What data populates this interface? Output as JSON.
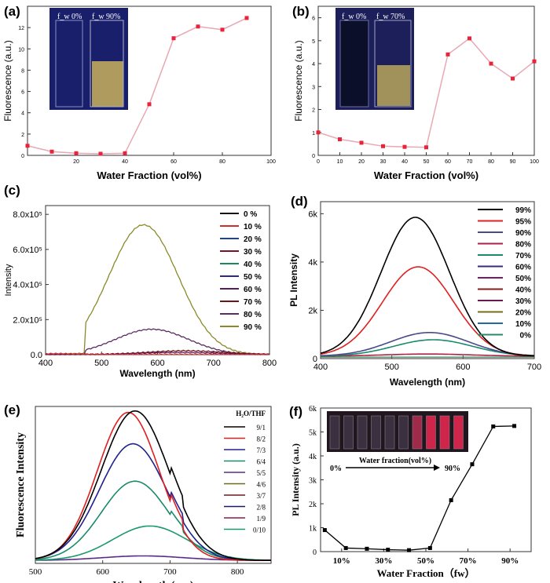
{
  "colors": {
    "panel_a_line": "#e8a8b4",
    "panel_a_marker": "#e8233a",
    "panel_b_line": "#e8a8b4",
    "panel_b_marker": "#e8233a",
    "panel_c": {
      "0 %": "#111111",
      "10 %": "#d42b2b",
      "20 %": "#1c3fa8",
      "30 %": "#7a0f2a",
      "40 %": "#1b8a5a",
      "50 %": "#2e2a8c",
      "60 %": "#5a1c5a",
      "70 %": "#6b1616",
      "80 %": "#5b2c60",
      "90 %": "#8a8a2a"
    },
    "panel_d": {
      "99%": "#000000",
      "95%": "#e02020",
      "90%": "#4a4a8a",
      "80%": "#b0204a",
      "70%": "#1a8a6a",
      "60%": "#3a2a7a",
      "50%": "#7a1a6a",
      "40%": "#8a1a1a",
      "30%": "#6a1a4a",
      "20%": "#7a6a1a",
      "10%": "#1a6aaa",
      "0%": "#2a8a6a"
    },
    "panel_e": {
      "9/1": "#000000",
      "8/2": "#e02020",
      "7/3": "#202090",
      "6/4": "#1a8a6a",
      "5/5": "#5a2a8a",
      "4/6": "#6a6a1a",
      "3/7": "#6a1a1a",
      "2/8": "#1a1a6a",
      "1/9": "#8a1a4a",
      "0/10": "#1a9a6a"
    },
    "panel_f": "#000000"
  },
  "chart_data": [
    {
      "panel": "(a)",
      "type": "line",
      "title": "",
      "xlabel": "Water Fraction (vol%)",
      "ylabel": "Fluorescence (a.u.)",
      "xlim": [
        0,
        100
      ],
      "ylim": [
        0,
        14
      ],
      "xticks": [
        "20",
        "40",
        "60",
        "80",
        "100"
      ],
      "yticks": [
        "0",
        "2",
        "4",
        "6",
        "8",
        "10",
        "12"
      ],
      "x": [
        0,
        10,
        20,
        30,
        40,
        50,
        60,
        70,
        80,
        90
      ],
      "y": [
        0.9,
        0.35,
        0.2,
        0.15,
        0.2,
        4.8,
        11.0,
        12.1,
        11.8,
        12.9
      ],
      "inset_labels": [
        "f_w 0%",
        "f_w 90%"
      ]
    },
    {
      "panel": "(b)",
      "type": "line",
      "title": "",
      "xlabel": "Water Fraction (vol%)",
      "ylabel": "Fluorescence (a.u.)",
      "xlim": [
        0,
        100
      ],
      "ylim": [
        0,
        6.5
      ],
      "xticks": [
        "0",
        "10",
        "20",
        "30",
        "40",
        "50",
        "60",
        "70",
        "80",
        "90",
        "100"
      ],
      "yticks": [
        "0",
        "1",
        "2",
        "3",
        "4",
        "5",
        "6"
      ],
      "x": [
        0,
        10,
        20,
        30,
        40,
        50,
        60,
        70,
        80,
        90,
        100
      ],
      "y": [
        1.0,
        0.7,
        0.55,
        0.4,
        0.37,
        0.35,
        4.4,
        5.1,
        4.0,
        3.35,
        4.1
      ],
      "inset_labels": [
        "f_w 0%",
        "f_w 70%"
      ]
    },
    {
      "panel": "(c)",
      "type": "line",
      "xlabel": "Wavelength (nm)",
      "ylabel": "Intensity",
      "xlim": [
        400,
        800
      ],
      "ylim": [
        0,
        850000
      ],
      "xticks": [
        "400",
        "500",
        "600",
        "700",
        "800"
      ],
      "yticks": [
        "0.0",
        "2.0x10⁵",
        "4.0x10⁵",
        "6.0x10⁵",
        "8.0x10⁵"
      ],
      "legend": [
        "0 %",
        "10 %",
        "20 %",
        "30 %",
        "40 %",
        "50 %",
        "60 %",
        "70 %",
        "80 %",
        "90 %"
      ],
      "series": [
        {
          "name": "90 %",
          "peak": 575,
          "height": 740000,
          "width": 62
        },
        {
          "name": "80 %",
          "peak": 590,
          "height": 145000,
          "width": 65
        },
        {
          "name": "70 %",
          "peak": 650,
          "height": 22000,
          "width": 70
        },
        {
          "name": "60 %",
          "peak": 640,
          "height": 12000,
          "width": 80
        },
        {
          "name": "10 %",
          "peak": 420,
          "height": 6000,
          "width": 40
        }
      ]
    },
    {
      "panel": "(d)",
      "type": "line",
      "xlabel": "Wavelength (nm)",
      "ylabel": "PL Intensity",
      "xlim": [
        400,
        700
      ],
      "ylim": [
        0,
        6500
      ],
      "xticks": [
        "400",
        "500",
        "600",
        "700"
      ],
      "yticks": [
        "0",
        "2k",
        "4k",
        "6k"
      ],
      "legend": [
        "99%",
        "95%",
        "90%",
        "80%",
        "70%",
        "60%",
        "50%",
        "40%",
        "30%",
        "20%",
        "10%",
        "0%"
      ],
      "series": [
        {
          "name": "99%",
          "peak": 533,
          "height": 5750,
          "width": 48
        },
        {
          "name": "95%",
          "peak": 537,
          "height": 3700,
          "width": 50
        },
        {
          "name": "90%",
          "peak": 553,
          "height": 980,
          "width": 55
        },
        {
          "name": "70%",
          "peak": 558,
          "height": 680,
          "width": 55
        },
        {
          "name": "80%",
          "peak": 550,
          "height": 90,
          "width": 60
        }
      ]
    },
    {
      "panel": "(e)",
      "type": "line",
      "xlabel": "Wavelength (nm)",
      "ylabel": "Fluorescence Intensity",
      "xlim": [
        500,
        850
      ],
      "ylim": [
        0,
        1.05
      ],
      "xticks": [
        "500",
        "600",
        "700",
        "800"
      ],
      "legend_title": "H₂O/THF",
      "legend": [
        "9/1",
        "8/2",
        "7/3",
        "6/4",
        "5/5",
        "4/6",
        "3/7",
        "2/8",
        "1/9",
        "0/10"
      ],
      "series": [
        {
          "name": "9/1",
          "peak": 648,
          "height": 1.0,
          "width": 50
        },
        {
          "name": "8/2",
          "peak": 638,
          "height": 0.99,
          "width": 46
        },
        {
          "name": "7/3",
          "peak": 645,
          "height": 0.78,
          "width": 50
        },
        {
          "name": "6/4",
          "peak": 648,
          "height": 0.53,
          "width": 50
        },
        {
          "name": "0/10",
          "peak": 670,
          "height": 0.23,
          "width": 55
        },
        {
          "name": "5/5",
          "peak": 660,
          "height": 0.03,
          "width": 60
        }
      ]
    },
    {
      "panel": "(f)",
      "type": "line",
      "xlabel": "Water Fraction（fw）",
      "ylabel": "PL Intensity (a.u.)",
      "xlim": [
        0,
        100
      ],
      "ylim": [
        0,
        6000
      ],
      "xticks": [
        "10%",
        "30%",
        "50%",
        "70%",
        "90%"
      ],
      "yticks": [
        "0",
        "1k",
        "2k",
        "3k",
        "4k",
        "5k",
        "6k"
      ],
      "x": [
        0,
        10,
        20,
        30,
        40,
        50,
        60,
        70,
        80,
        90
      ],
      "y": [
        900,
        150,
        120,
        80,
        60,
        150,
        2150,
        3650,
        5230,
        5250
      ],
      "inset_text": "Water fraction(vol%)",
      "inset_from": "0%",
      "inset_to": "90%"
    }
  ]
}
